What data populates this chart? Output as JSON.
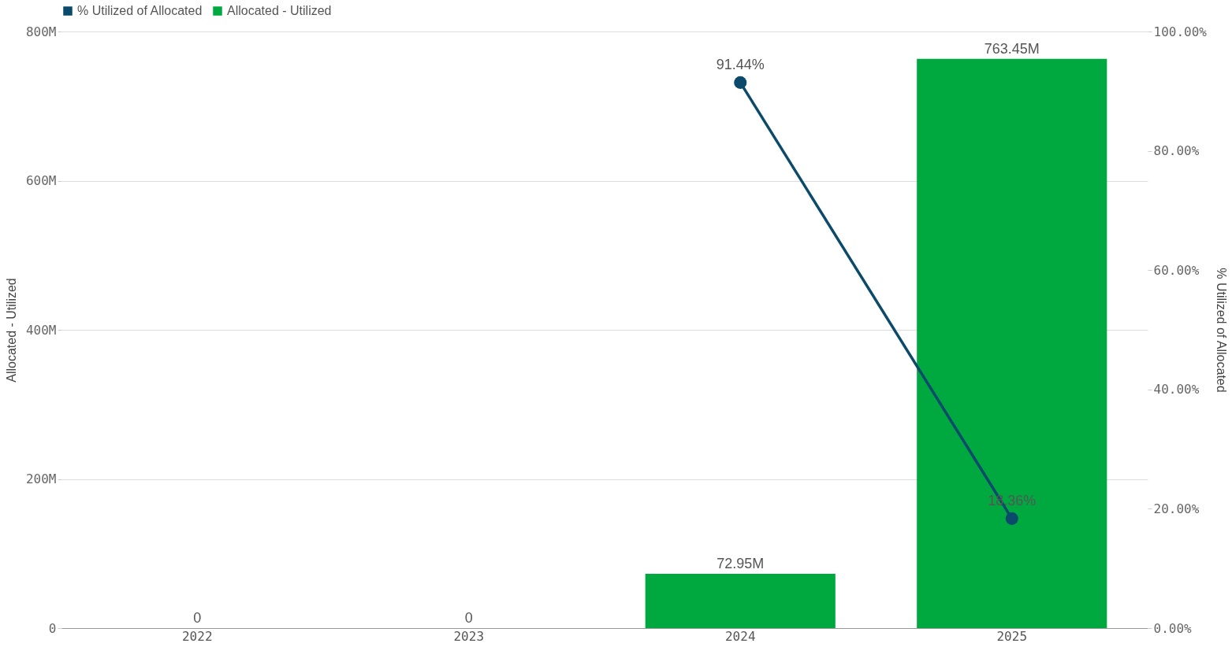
{
  "chart_data": {
    "type": "bar",
    "categories": [
      "2022",
      "2023",
      "2024",
      "2025"
    ],
    "ylabel": "Allocated - Utilized",
    "y2label": "% Utilized of Allocated",
    "ylim": [
      0,
      800000000
    ],
    "yticks": [
      0,
      {
        "value": 200000000,
        "label": "200M"
      },
      {
        "value": 400000000,
        "label": "400M"
      },
      {
        "value": 600000000,
        "label": "600M"
      },
      {
        "value": 800000000,
        "label": "800M"
      }
    ],
    "y2lim": [
      0,
      100
    ],
    "y2ticks": [
      {
        "value": 0,
        "label": "0.00%"
      },
      {
        "value": 20,
        "label": "20.00%"
      },
      {
        "value": 40,
        "label": "40.00%"
      },
      {
        "value": 60,
        "label": "60.00%"
      },
      {
        "value": 80,
        "label": "80.00%"
      },
      {
        "value": 100,
        "label": "100.00%"
      }
    ],
    "series": [
      {
        "name": "% Utilized of Allocated",
        "type": "line",
        "axis": "y2",
        "color": "#0b4a6b",
        "marker": "circle",
        "values": [
          null,
          null,
          91.44,
          18.36
        ],
        "value_labels": [
          null,
          null,
          "91.44%",
          "18.36%"
        ]
      },
      {
        "name": "Allocated - Utilized",
        "color": "#00a940",
        "values": [
          0,
          0,
          72950000,
          763450000
        ],
        "value_labels": [
          "0",
          "0",
          "72.95M",
          "763.45M"
        ]
      }
    ],
    "grid": "y",
    "legend": "top left"
  }
}
